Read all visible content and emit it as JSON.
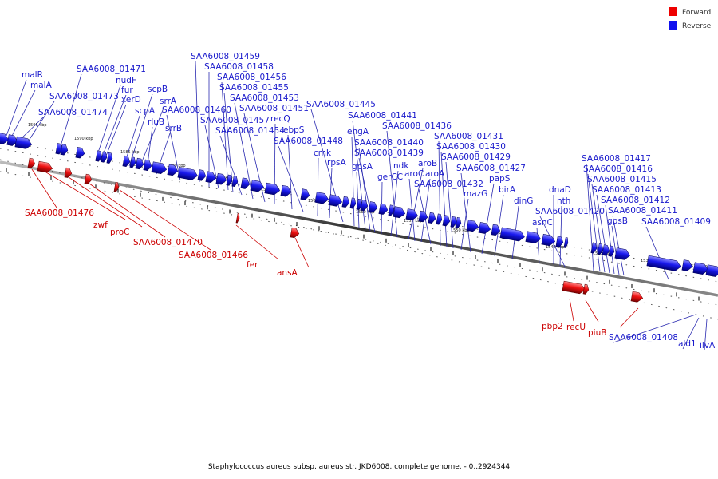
{
  "legend": [
    {
      "label": "Forward",
      "color": "#ee0000"
    },
    {
      "label": "Reverse",
      "color": "#1111ee"
    }
  ],
  "footer": "Staphylococcus aureus subsp. aureus str. JKD6008, complete genome. - 0..2924344",
  "kbp_ticks": [
    "1595 kbp",
    "1590 kbp",
    "1585 kbp",
    "1580 kbp",
    "1575 kbp",
    "1570 kbp",
    "1565 kbp",
    "1560 kbp",
    "1555 kbp",
    "1550 kbp",
    "1545 kbp",
    "1540 kbp",
    "1535 kbp",
    "1530 kbp",
    "1525 kbp"
  ],
  "reverse_genes": [
    "malR",
    "malA",
    "SAA6008_01474",
    "SAA6008_01473",
    "SAA6008_01471",
    "nudF",
    "fur",
    "xerD",
    "scpA",
    "scpB",
    "srrA",
    "rluB",
    "srrB",
    "SAA6008_01460",
    "SAA6008_01459",
    "SAA6008_01458",
    "SAA6008_01457",
    "SAA6008_01456",
    "SAA6008_01455",
    "SAA6008_01454",
    "SAA6008_01453",
    "SAA6008_01451",
    "recQ",
    "ebpS",
    "SAA6008_01448",
    "cmk",
    "rpsA",
    "SAA6008_01445",
    "engA",
    "gpsA",
    "SAA6008_01441",
    "SAA6008_01440",
    "SAA6008_01439",
    "gerCC",
    "ndk",
    "SAA6008_01436",
    "aroB",
    "aroC",
    "aroA",
    "SAA6008_01432",
    "SAA6008_01431",
    "SAA6008_01430",
    "SAA6008_01429",
    "mazG",
    "SAA6008_01427",
    "papS",
    "birA",
    "dinG",
    "asnC",
    "dnaD",
    "nth",
    "SAA6008_01420",
    "SAA6008_01417",
    "SAA6008_01416",
    "SAA6008_01415",
    "SAA6008_01413",
    "SAA6008_01412",
    "gpsB",
    "SAA6008_01411",
    "SAA6008_01409",
    "SAA6008_01408",
    "ald1",
    "ilvA"
  ],
  "forward_genes": [
    "SAA6008_01476",
    "zwf",
    "proC",
    "SAA6008_01470",
    "SAA6008_01466",
    "fer",
    "ansA",
    "pbp2",
    "recU",
    "piuB"
  ]
}
